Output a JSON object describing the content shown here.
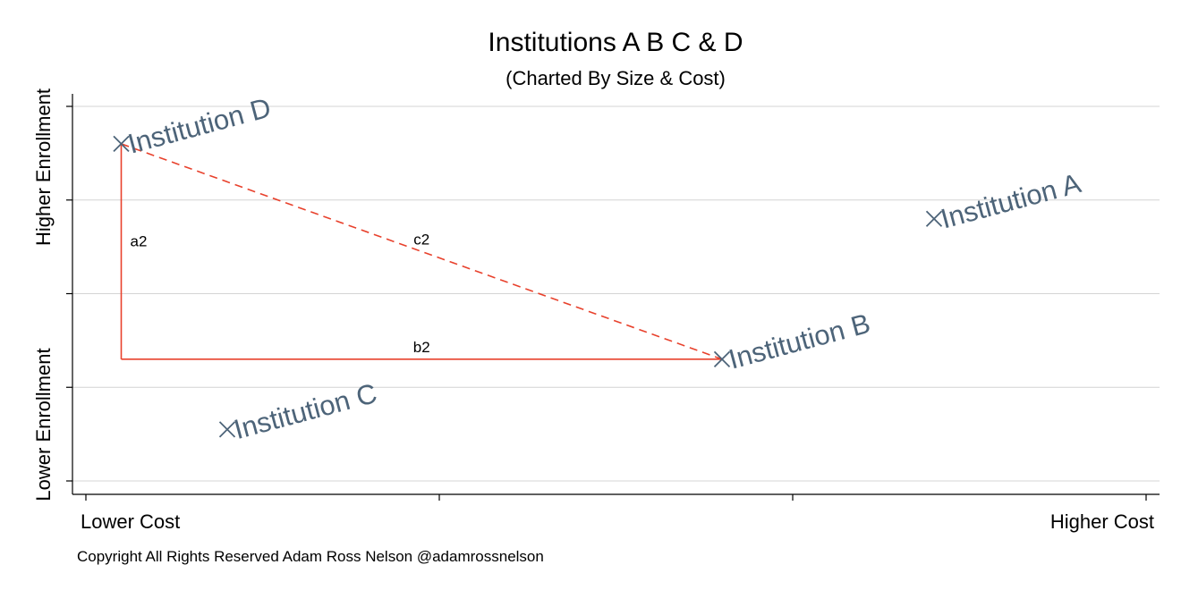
{
  "chart_data": {
    "type": "scatter",
    "title": "Institutions A B C & D",
    "subtitle": "(Charted By Size & Cost)",
    "x_axis": {
      "low_label": "Lower Cost",
      "high_label": "Higher Cost",
      "range": [
        0,
        3
      ],
      "ticks": [
        0,
        1,
        2,
        3
      ],
      "tick_labels_shown": false
    },
    "y_axis": {
      "low_label": "Lower Enrollment",
      "high_label": "Higher Enrollment",
      "range": [
        0,
        4
      ],
      "ticks": [
        0,
        1,
        2,
        3,
        4
      ],
      "tick_labels_shown": false
    },
    "grid": true,
    "legend": "none",
    "marker": "x",
    "points": [
      {
        "label": "Institution A",
        "x": 2.4,
        "y": 2.8
      },
      {
        "label": "Institution B",
        "x": 1.8,
        "y": 1.3
      },
      {
        "label": "Institution C",
        "x": 0.4,
        "y": 0.55
      },
      {
        "label": "Institution D",
        "x": 0.1,
        "y": 3.6
      }
    ],
    "segments": [
      {
        "label": "a2",
        "style": "solid",
        "from": {
          "x": 0.1,
          "y": 1.3
        },
        "to": {
          "x": 0.1,
          "y": 3.6
        }
      },
      {
        "label": "b2",
        "style": "solid",
        "from": {
          "x": 0.1,
          "y": 1.3
        },
        "to": {
          "x": 1.8,
          "y": 1.3
        }
      },
      {
        "label": "c2",
        "style": "dashed",
        "from": {
          "x": 0.1,
          "y": 3.6
        },
        "to": {
          "x": 1.8,
          "y": 1.3
        }
      }
    ],
    "colors": {
      "marker": "#4d6479",
      "label": "#4d6479",
      "segment": "#e8412c",
      "grid": "#d4d4d4",
      "axis": "#000000"
    }
  },
  "footer": {
    "copyright": "Copyright All Rights Reserved Adam Ross Nelson @adamrossnelson"
  }
}
